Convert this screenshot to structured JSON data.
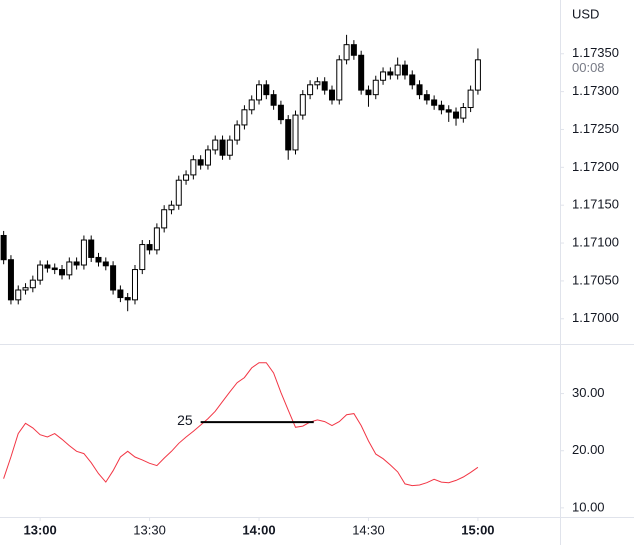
{
  "chart_data": [
    {
      "type": "candlestick",
      "axis_label": "USD",
      "countdown": "00:08",
      "x": [
        770,
        772,
        774,
        776,
        778,
        780,
        782,
        784,
        786,
        788,
        790,
        792,
        794,
        796,
        798,
        800,
        802,
        804,
        806,
        808,
        810,
        812,
        814,
        816,
        818,
        820,
        822,
        824,
        826,
        828,
        830,
        832,
        834,
        836,
        838,
        840,
        842,
        844,
        846,
        848,
        850,
        852,
        854,
        856,
        858,
        860,
        862,
        864,
        866,
        868,
        870,
        872,
        874,
        876,
        878,
        880,
        882,
        884,
        886,
        888,
        890,
        892,
        894,
        896,
        898,
        900
      ],
      "open": [
        1.1711,
        1.17078,
        1.17025,
        1.17038,
        1.17041,
        1.17051,
        1.17071,
        1.17067,
        1.17065,
        1.17058,
        1.17075,
        1.17071,
        1.17104,
        1.17081,
        1.17075,
        1.1707,
        1.17038,
        1.17028,
        1.17025,
        1.17065,
        1.17098,
        1.17091,
        1.1712,
        1.17144,
        1.1715,
        1.17183,
        1.1719,
        1.1721,
        1.17203,
        1.17223,
        1.17236,
        1.17216,
        1.17236,
        1.17256,
        1.17276,
        1.17289,
        1.17309,
        1.17296,
        1.17282,
        1.17263,
        1.17223,
        1.17269,
        1.17296,
        1.17309,
        1.17313,
        1.17302,
        1.17289,
        1.17342,
        1.17362,
        1.17348,
        1.17302,
        1.17296,
        1.17315,
        1.17326,
        1.17322,
        1.17335,
        1.17322,
        1.17309,
        1.17296,
        1.17289,
        1.17282,
        1.17276,
        1.17273,
        1.17265,
        1.17279,
        1.17302
      ],
      "high": [
        1.17116,
        1.17084,
        1.17044,
        1.17047,
        1.17057,
        1.17077,
        1.17077,
        1.17073,
        1.17071,
        1.17081,
        1.17081,
        1.1711,
        1.1711,
        1.17087,
        1.17081,
        1.17076,
        1.17044,
        1.17034,
        1.17071,
        1.17104,
        1.17104,
        1.17126,
        1.1715,
        1.17156,
        1.17189,
        1.17196,
        1.17216,
        1.17216,
        1.17229,
        1.17242,
        1.17242,
        1.17242,
        1.17262,
        1.17282,
        1.17295,
        1.17315,
        1.17315,
        1.17302,
        1.17288,
        1.17269,
        1.17275,
        1.17302,
        1.17315,
        1.17319,
        1.17319,
        1.17308,
        1.17348,
        1.17375,
        1.17368,
        1.17354,
        1.17308,
        1.17321,
        1.17332,
        1.17332,
        1.17345,
        1.17341,
        1.17328,
        1.17315,
        1.17302,
        1.17295,
        1.17288,
        1.17282,
        1.17279,
        1.17285,
        1.17308,
        1.17357
      ],
      "low": [
        1.17072,
        1.17019,
        1.17019,
        1.17032,
        1.17035,
        1.17045,
        1.17061,
        1.17059,
        1.17052,
        1.17052,
        1.17065,
        1.17065,
        1.17075,
        1.17069,
        1.17064,
        1.17032,
        1.17022,
        1.1701,
        1.17019,
        1.17059,
        1.17085,
        1.17085,
        1.17114,
        1.17138,
        1.17144,
        1.17177,
        1.17184,
        1.17197,
        1.17197,
        1.17217,
        1.1721,
        1.1721,
        1.1723,
        1.1725,
        1.1727,
        1.17283,
        1.1729,
        1.17276,
        1.17257,
        1.1721,
        1.17217,
        1.17263,
        1.1729,
        1.17303,
        1.17296,
        1.17283,
        1.17283,
        1.17336,
        1.17342,
        1.17296,
        1.1728,
        1.1729,
        1.17309,
        1.17316,
        1.17316,
        1.17316,
        1.17303,
        1.1729,
        1.17283,
        1.17276,
        1.1727,
        1.1726,
        1.17255,
        1.17259,
        1.17273,
        1.17296
      ],
      "close": [
        1.17078,
        1.17025,
        1.17038,
        1.17041,
        1.17051,
        1.17071,
        1.17067,
        1.17065,
        1.17058,
        1.17075,
        1.17071,
        1.17104,
        1.17081,
        1.17075,
        1.1707,
        1.17038,
        1.17028,
        1.17025,
        1.17065,
        1.17098,
        1.17091,
        1.1712,
        1.17144,
        1.1715,
        1.17183,
        1.1719,
        1.1721,
        1.17203,
        1.17223,
        1.17236,
        1.17216,
        1.17236,
        1.17256,
        1.17276,
        1.17289,
        1.17309,
        1.17296,
        1.17282,
        1.17263,
        1.17223,
        1.17269,
        1.17296,
        1.17309,
        1.17313,
        1.17302,
        1.17289,
        1.17342,
        1.17362,
        1.17348,
        1.17302,
        1.17296,
        1.17315,
        1.17326,
        1.17322,
        1.17335,
        1.17322,
        1.17309,
        1.17296,
        1.17289,
        1.17282,
        1.17276,
        1.17273,
        1.17265,
        1.17279,
        1.17302,
        1.17342
      ],
      "xlim": [
        769,
        922.5
      ],
      "ylim": [
        1.16968,
        1.17421
      ],
      "yticks": [
        {
          "value": 1.17,
          "label": "1.17000"
        },
        {
          "value": 1.1705,
          "label": "1.17050"
        },
        {
          "value": 1.171,
          "label": "1.17100"
        },
        {
          "value": 1.1715,
          "label": "1.17150"
        },
        {
          "value": 1.172,
          "label": "1.17200"
        },
        {
          "value": 1.1725,
          "label": "1.17250"
        },
        {
          "value": 1.173,
          "label": "1.17300"
        },
        {
          "value": 1.1735,
          "label": "1.17350"
        }
      ]
    },
    {
      "type": "line",
      "color": "#f23645",
      "x": [
        770,
        772,
        774,
        776,
        778,
        780,
        782,
        784,
        786,
        788,
        790,
        792,
        794,
        796,
        798,
        800,
        802,
        804,
        806,
        808,
        810,
        812,
        814,
        816,
        818,
        820,
        822,
        824,
        826,
        828,
        830,
        832,
        834,
        836,
        838,
        840,
        842,
        844,
        846,
        848,
        850,
        852,
        854,
        856,
        858,
        860,
        862,
        864,
        866,
        868,
        870,
        872,
        874,
        876,
        878,
        880,
        882,
        884,
        886,
        888,
        890,
        892,
        894,
        896,
        898,
        900
      ],
      "values": [
        15.1,
        18.9,
        23.0,
        24.8,
        24.0,
        22.8,
        22.4,
        23.0,
        22.0,
        20.9,
        19.9,
        19.5,
        17.9,
        16.0,
        14.5,
        16.5,
        18.9,
        19.9,
        18.9,
        18.4,
        17.8,
        17.4,
        18.7,
        19.9,
        21.3,
        22.4,
        23.4,
        24.5,
        25.6,
        26.9,
        28.6,
        30.3,
        31.9,
        32.8,
        34.5,
        35.4,
        35.4,
        33.6,
        30.2,
        27.1,
        24.1,
        24.3,
        25.0,
        25.4,
        25.1,
        24.4,
        25.1,
        26.3,
        26.5,
        24.4,
        21.7,
        19.4,
        18.6,
        17.5,
        16.3,
        14.2,
        13.9,
        14.0,
        14.4,
        15.0,
        14.5,
        14.4,
        14.8,
        15.4,
        16.2,
        17.1
      ],
      "xlim": [
        769,
        922.5
      ],
      "ylim": [
        8.4,
        38.5
      ],
      "yticks": [
        {
          "value": 10,
          "label": "10.00"
        },
        {
          "value": 20,
          "label": "20.00"
        },
        {
          "value": 30,
          "label": "30.00"
        }
      ],
      "xticks": [
        {
          "value": 780,
          "label": "13:00"
        },
        {
          "value": 810,
          "label": "13:30"
        },
        {
          "value": 840,
          "label": "14:00"
        },
        {
          "value": 870,
          "label": "14:30"
        },
        {
          "value": 900,
          "label": "15:00"
        }
      ],
      "annotation": {
        "label": "25",
        "y": 25,
        "x": [
          824,
          855
        ]
      }
    }
  ]
}
